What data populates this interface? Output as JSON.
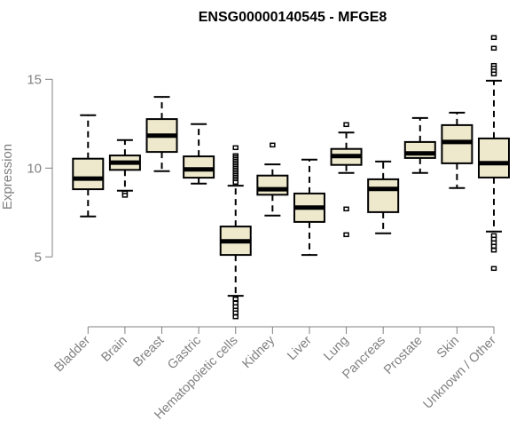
{
  "chart_data": {
    "type": "box",
    "title": "ENSG00000140545 - MFGE8",
    "xlabel": "",
    "ylabel": "Expression",
    "ylim": [
      0.5,
      18
    ],
    "yticks": [
      5,
      10,
      15
    ],
    "grid": false,
    "colors": {
      "box_fill": "#EEE8CD",
      "stroke": "#000000",
      "axis": "#808080",
      "label": "#808080"
    },
    "categories": [
      "Bladder",
      "Brain",
      "Breast",
      "Gastric",
      "Hematopoietic cells",
      "Kidney",
      "Liver",
      "Lung",
      "Pancreas",
      "Prostate",
      "Skin",
      "Unknown / Other"
    ],
    "boxes": [
      {
        "low": 7.28,
        "q1": 8.81,
        "median": 9.41,
        "q3": 10.53,
        "high": 12.98,
        "outliers": []
      },
      {
        "low": 8.73,
        "q1": 9.9,
        "median": 10.31,
        "q3": 10.71,
        "high": 11.58,
        "outliers": [
          8.6,
          8.47
        ]
      },
      {
        "low": 9.83,
        "q1": 10.91,
        "median": 11.83,
        "q3": 12.76,
        "high": 14.01,
        "outliers": []
      },
      {
        "low": 9.13,
        "q1": 9.46,
        "median": 9.93,
        "q3": 10.66,
        "high": 12.48,
        "outliers": []
      },
      {
        "low": 2.81,
        "q1": 5.11,
        "median": 5.88,
        "q3": 6.71,
        "high": 9.01,
        "outliers": [
          11.15,
          10.7,
          10.6,
          10.5,
          10.4,
          10.3,
          10.2,
          10.1,
          10.0,
          9.9,
          9.8,
          9.7,
          9.6,
          9.5,
          9.4,
          9.3,
          9.2,
          2.63,
          2.4,
          2.2,
          2.0,
          1.85,
          1.63
        ]
      },
      {
        "low": 7.33,
        "q1": 8.5,
        "median": 8.81,
        "q3": 9.58,
        "high": 10.21,
        "outliers": [
          11.3
        ]
      },
      {
        "low": 5.11,
        "q1": 6.97,
        "median": 7.78,
        "q3": 8.57,
        "high": 10.48,
        "outliers": []
      },
      {
        "low": 9.73,
        "q1": 10.18,
        "median": 10.68,
        "q3": 11.08,
        "high": 12.0,
        "outliers": [
          12.45,
          7.7,
          6.25
        ]
      },
      {
        "low": 6.33,
        "q1": 7.52,
        "median": 8.83,
        "q3": 9.37,
        "high": 10.37,
        "outliers": []
      },
      {
        "low": 9.73,
        "q1": 10.57,
        "median": 10.83,
        "q3": 11.47,
        "high": 12.82,
        "outliers": []
      },
      {
        "low": 8.88,
        "q1": 10.27,
        "median": 11.47,
        "q3": 12.42,
        "high": 13.12,
        "outliers": []
      },
      {
        "low": 6.43,
        "q1": 9.47,
        "median": 10.28,
        "q3": 11.67,
        "high": 14.92,
        "outliers": [
          17.35,
          16.75,
          15.78,
          15.63,
          15.47,
          15.3,
          6.2,
          6.0,
          5.8,
          5.6,
          5.38,
          4.35
        ]
      }
    ]
  }
}
